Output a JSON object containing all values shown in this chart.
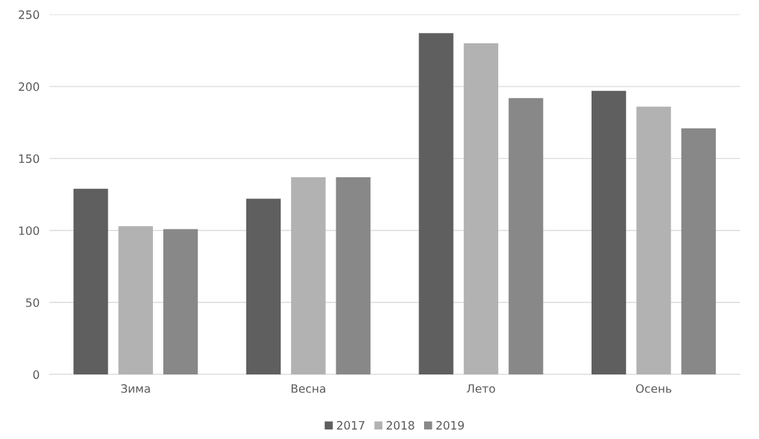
{
  "chart_data": {
    "type": "bar",
    "categories": [
      "Зима",
      "Весна",
      "Лето",
      "Осень"
    ],
    "series": [
      {
        "name": "2017",
        "color": "#5f5f5f",
        "values": [
          129,
          122,
          237,
          197
        ]
      },
      {
        "name": "2018",
        "color": "#b2b2b2",
        "values": [
          103,
          137,
          230,
          186
        ]
      },
      {
        "name": "2019",
        "color": "#888888",
        "values": [
          101,
          137,
          192,
          171
        ]
      }
    ],
    "ylim": [
      0,
      250
    ],
    "yticks": [
      0,
      50,
      100,
      150,
      200,
      250
    ],
    "grid": "y",
    "legend": "bottom"
  }
}
